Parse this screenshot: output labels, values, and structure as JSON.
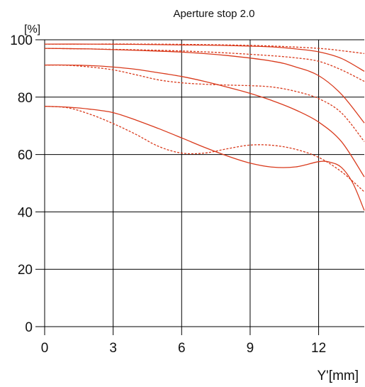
{
  "chart_data": {
    "type": "line",
    "title": "Aperture stop 2.0",
    "ylabel": "[%]",
    "xlabel": "Y'[mm]",
    "xlim": [
      0,
      14
    ],
    "ylim": [
      0,
      100
    ],
    "xticks": [
      "0",
      "3",
      "6",
      "9",
      "12"
    ],
    "yticks": [
      "0",
      "20",
      "40",
      "60",
      "80",
      "100"
    ],
    "grid": true,
    "line_color": "#d93a1c",
    "grid_color": "#000000",
    "series": [
      {
        "style": "solid",
        "x": [
          0,
          2,
          4,
          6,
          8,
          10,
          11,
          12,
          13,
          14
        ],
        "y": [
          98.5,
          98.5,
          98.4,
          98.2,
          98,
          97.5,
          96.8,
          95.8,
          93.5,
          89
        ]
      },
      {
        "style": "dashed",
        "x": [
          0,
          2,
          4,
          6,
          8,
          10,
          12,
          13,
          14
        ],
        "y": [
          98.5,
          98.5,
          98.5,
          98.4,
          98.2,
          97.8,
          97,
          96.2,
          95.2
        ]
      },
      {
        "style": "solid",
        "x": [
          0,
          2,
          4,
          6,
          8,
          10,
          11,
          12,
          13,
          14
        ],
        "y": [
          97,
          96.8,
          96.3,
          95.7,
          94.5,
          92.5,
          90.5,
          87.5,
          81,
          71
        ]
      },
      {
        "style": "dashed",
        "x": [
          0,
          2,
          4,
          6,
          8,
          10,
          11,
          12,
          13,
          14
        ],
        "y": [
          97,
          96.8,
          96.5,
          96.1,
          95.4,
          94.4,
          93.7,
          92.5,
          89.5,
          85.5
        ]
      },
      {
        "style": "solid",
        "x": [
          0,
          1,
          2,
          3,
          4,
          5,
          6,
          7,
          8,
          9,
          10,
          11,
          12,
          13,
          14
        ],
        "y": [
          91.2,
          91.2,
          91,
          90.5,
          89.7,
          88.5,
          87.2,
          85.5,
          83.5,
          81.3,
          78.7,
          75.5,
          71.3,
          64.5,
          52.2
        ]
      },
      {
        "style": "dashed",
        "x": [
          0,
          1,
          2,
          3,
          4,
          5,
          6,
          7,
          8,
          9,
          10,
          11,
          12,
          13,
          14
        ],
        "y": [
          91.2,
          91.1,
          90.5,
          89.5,
          87.8,
          86,
          85,
          84.5,
          84.2,
          84,
          83.5,
          82,
          79.5,
          74.5,
          64.5
        ]
      },
      {
        "style": "solid",
        "x": [
          0,
          1,
          2,
          3,
          4,
          5,
          6,
          7,
          8,
          9,
          10,
          11,
          12,
          12.5,
          13,
          13.5,
          14
        ],
        "y": [
          76.8,
          76.5,
          75.8,
          74.6,
          72,
          69,
          65.8,
          62.5,
          59.5,
          57,
          55.6,
          55.7,
          57.5,
          57.3,
          55.5,
          50,
          40.5
        ]
      },
      {
        "style": "dashed",
        "x": [
          0,
          1,
          2,
          3,
          4,
          5,
          6,
          7,
          8,
          9,
          10,
          11,
          12,
          13,
          14
        ],
        "y": [
          76.8,
          76.3,
          74,
          70.8,
          67,
          62.8,
          60.5,
          60.5,
          62,
          63.3,
          63.2,
          61.8,
          59,
          54,
          47
        ]
      }
    ]
  }
}
